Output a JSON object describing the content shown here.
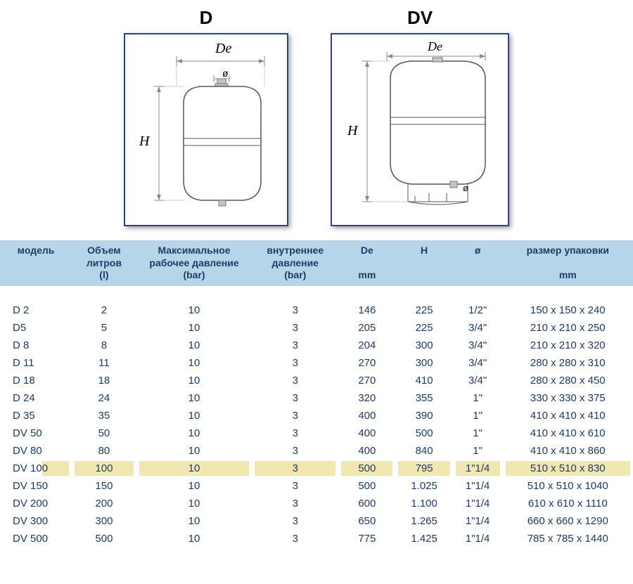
{
  "diagrams": {
    "d_label": "D",
    "dv_label": "DV",
    "de_label": "De",
    "h_label": "H",
    "dia_symbol": "ø"
  },
  "table": {
    "headers": {
      "model": "модель",
      "volume_l1": "Объем",
      "volume_l2": "литров",
      "volume_l3": "(l)",
      "maxwp_l1": "Максимальное",
      "maxwp_l2": "рабочее давление",
      "maxwp_l3": "(bar)",
      "intp_l1": "внутреннее",
      "intp_l2": "давление",
      "intp_l3": "(bar)",
      "de_l1": "De",
      "de_l2": "mm",
      "h_l1": "H",
      "dia": "ø",
      "pack_l1": "размер упаковки",
      "pack_l2": "mm"
    },
    "rows": [
      {
        "model": "D 2",
        "vol": "2",
        "mwp": "10",
        "ip": "3",
        "de": "146",
        "h": "225",
        "dia": "1/2\"",
        "pack": "150 x 150 x 240",
        "hl": false
      },
      {
        "model": "D5",
        "vol": "5",
        "mwp": "10",
        "ip": "3",
        "de": "205",
        "h": "225",
        "dia": "3/4\"",
        "pack": "210 x 210 x 250",
        "hl": false
      },
      {
        "model": "D 8",
        "vol": "8",
        "mwp": "10",
        "ip": "3",
        "de": "204",
        "h": "300",
        "dia": "3/4\"",
        "pack": "210 x 210 x 320",
        "hl": false
      },
      {
        "model": "D 11",
        "vol": "11",
        "mwp": "10",
        "ip": "3",
        "de": "270",
        "h": "300",
        "dia": "3/4\"",
        "pack": "280 x 280 x 310",
        "hl": false
      },
      {
        "model": "D 18",
        "vol": "18",
        "mwp": "10",
        "ip": "3",
        "de": "270",
        "h": "410",
        "dia": "3/4\"",
        "pack": "280 x 280 x 450",
        "hl": false
      },
      {
        "model": "D 24",
        "vol": "24",
        "mwp": "10",
        "ip": "3",
        "de": "320",
        "h": "355",
        "dia": "1\"",
        "pack": "330 x 330 x 375",
        "hl": false
      },
      {
        "model": "D 35",
        "vol": "35",
        "mwp": "10",
        "ip": "3",
        "de": "400",
        "h": "390",
        "dia": "1\"",
        "pack": "410 x 410 x 410",
        "hl": false
      },
      {
        "model": "DV 50",
        "vol": "50",
        "mwp": "10",
        "ip": "3",
        "de": "400",
        "h": "500",
        "dia": "1\"",
        "pack": "410 x 410 x 610",
        "hl": false
      },
      {
        "model": "DV 80",
        "vol": "80",
        "mwp": "10",
        "ip": "3",
        "de": "400",
        "h": "840",
        "dia": "1\"",
        "pack": "410 x 410 x 860",
        "hl": false
      },
      {
        "model": "DV 100",
        "vol": "100",
        "mwp": "10",
        "ip": "3",
        "de": "500",
        "h": "795",
        "dia": "1\"1/4",
        "pack": "510 x 510 x 830",
        "hl": true
      },
      {
        "model": "DV 150",
        "vol": "150",
        "mwp": "10",
        "ip": "3",
        "de": "500",
        "h": "1.025",
        "dia": "1\"1/4",
        "pack": "510 x 510 x 1040",
        "hl": false
      },
      {
        "model": "DV 200",
        "vol": "200",
        "mwp": "10",
        "ip": "3",
        "de": "600",
        "h": "1.100",
        "dia": "1\"1/4",
        "pack": "610 x 610 x 1110",
        "hl": false
      },
      {
        "model": "DV 300",
        "vol": "300",
        "mwp": "10",
        "ip": "3",
        "de": "650",
        "h": "1.265",
        "dia": "1\"1/4",
        "pack": "660 x 660 x 1290",
        "hl": false
      },
      {
        "model": "DV 500",
        "vol": "500",
        "mwp": "10",
        "ip": "3",
        "de": "775",
        "h": "1.425",
        "dia": "1\"1/4",
        "pack": "785 x 785 x 1440",
        "hl": false
      }
    ],
    "colors": {
      "header_bg": "#b7d5e9",
      "text": "#1d3b66",
      "highlight": "#f3e7b1",
      "frame_border": "#2f3e8e"
    }
  }
}
